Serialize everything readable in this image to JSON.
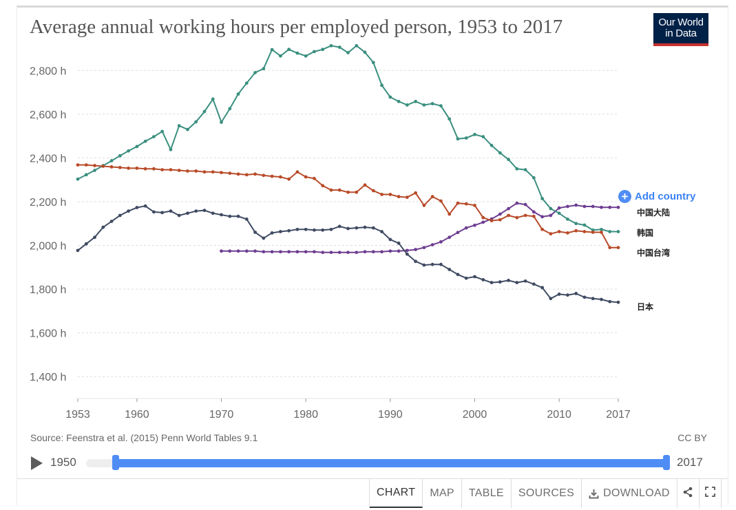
{
  "title": "Average annual working hours per employed person, 1953 to 2017",
  "logo": {
    "line1": "Our World",
    "line2": "in Data"
  },
  "add_country_label": "Add country",
  "source": "Source: Feenstra et al. (2015) Penn World Tables 9.1",
  "license": "CC BY",
  "timeline": {
    "start_label": "1950",
    "end_label": "2017"
  },
  "tabs": [
    {
      "label": "CHART",
      "active": true
    },
    {
      "label": "MAP",
      "active": false
    },
    {
      "label": "TABLE",
      "active": false
    },
    {
      "label": "SOURCES",
      "active": false
    },
    {
      "label": "DOWNLOAD",
      "active": false
    }
  ],
  "colors": {
    "accent": "#4f8df5",
    "title": "#555555",
    "logo_bg": "#002147",
    "logo_stripe": "#c5312d"
  },
  "chart_data": {
    "type": "line",
    "title": "Average annual working hours per employed person, 1953 to 2017",
    "xlabel": "",
    "ylabel": "",
    "xlim": [
      1953,
      2017
    ],
    "ylim": [
      1300,
      2930
    ],
    "x_ticks": [
      1953,
      1960,
      1970,
      1980,
      1990,
      2000,
      2010,
      2017
    ],
    "y_ticks": [
      1400,
      1600,
      1800,
      2000,
      2200,
      2400,
      2600,
      2800
    ],
    "y_tick_labels": [
      "1,400 h",
      "1,600 h",
      "1,800 h",
      "2,000 h",
      "2,200 h",
      "2,400 h",
      "2,600 h",
      "2,800 h"
    ],
    "grid": "horizontal dashed",
    "legend": "line end labels",
    "series": [
      {
        "name": "中国大陆",
        "color": "#6d3e91",
        "points": [
          [
            1970,
            1974
          ],
          [
            1971,
            1974
          ],
          [
            1972,
            1974
          ],
          [
            1973,
            1974
          ],
          [
            1974,
            1974
          ],
          [
            1975,
            1971
          ],
          [
            1976,
            1971
          ],
          [
            1977,
            1971
          ],
          [
            1978,
            1971
          ],
          [
            1979,
            1971
          ],
          [
            1980,
            1971
          ],
          [
            1981,
            1971
          ],
          [
            1982,
            1968
          ],
          [
            1983,
            1968
          ],
          [
            1984,
            1968
          ],
          [
            1985,
            1968
          ],
          [
            1986,
            1968
          ],
          [
            1987,
            1971
          ],
          [
            1988,
            1971
          ],
          [
            1989,
            1971
          ],
          [
            1990,
            1974
          ],
          [
            1991,
            1974
          ],
          [
            1992,
            1977
          ],
          [
            1993,
            1981
          ],
          [
            1994,
            1990
          ],
          [
            1995,
            2003
          ],
          [
            1996,
            2016
          ],
          [
            1997,
            2037
          ],
          [
            1998,
            2059
          ],
          [
            1999,
            2080
          ],
          [
            2000,
            2092
          ],
          [
            2001,
            2106
          ],
          [
            2002,
            2121
          ],
          [
            2003,
            2143
          ],
          [
            2004,
            2168
          ],
          [
            2005,
            2193
          ],
          [
            2006,
            2187
          ],
          [
            2007,
            2153
          ],
          [
            2008,
            2131
          ],
          [
            2009,
            2137
          ],
          [
            2010,
            2171
          ],
          [
            2011,
            2178
          ],
          [
            2012,
            2184
          ],
          [
            2013,
            2178
          ],
          [
            2014,
            2178
          ],
          [
            2015,
            2174
          ],
          [
            2016,
            2174
          ],
          [
            2017,
            2174
          ]
        ]
      },
      {
        "name": "韩国",
        "color": "#3a8f7f",
        "points": [
          [
            1953,
            2303
          ],
          [
            1954,
            2323
          ],
          [
            1955,
            2343
          ],
          [
            1956,
            2365
          ],
          [
            1957,
            2387
          ],
          [
            1958,
            2410
          ],
          [
            1959,
            2432
          ],
          [
            1960,
            2452
          ],
          [
            1961,
            2476
          ],
          [
            1962,
            2497
          ],
          [
            1963,
            2521
          ],
          [
            1964,
            2438
          ],
          [
            1965,
            2547
          ],
          [
            1966,
            2530
          ],
          [
            1967,
            2565
          ],
          [
            1968,
            2612
          ],
          [
            1969,
            2669
          ],
          [
            1970,
            2563
          ],
          [
            1971,
            2625
          ],
          [
            1972,
            2692
          ],
          [
            1973,
            2742
          ],
          [
            1974,
            2790
          ],
          [
            1975,
            2808
          ],
          [
            1976,
            2895
          ],
          [
            1977,
            2866
          ],
          [
            1978,
            2896
          ],
          [
            1979,
            2879
          ],
          [
            1980,
            2866
          ],
          [
            1981,
            2886
          ],
          [
            1982,
            2896
          ],
          [
            1983,
            2913
          ],
          [
            1984,
            2906
          ],
          [
            1985,
            2881
          ],
          [
            1986,
            2913
          ],
          [
            1987,
            2883
          ],
          [
            1988,
            2836
          ],
          [
            1989,
            2732
          ],
          [
            1990,
            2678
          ],
          [
            1991,
            2658
          ],
          [
            1992,
            2642
          ],
          [
            1993,
            2658
          ],
          [
            1994,
            2642
          ],
          [
            1995,
            2648
          ],
          [
            1996,
            2638
          ],
          [
            1997,
            2578
          ],
          [
            1998,
            2487
          ],
          [
            1999,
            2491
          ],
          [
            2000,
            2507
          ],
          [
            2001,
            2497
          ],
          [
            2002,
            2457
          ],
          [
            2003,
            2423
          ],
          [
            2004,
            2393
          ],
          [
            2005,
            2350
          ],
          [
            2006,
            2346
          ],
          [
            2007,
            2309
          ],
          [
            2008,
            2214
          ],
          [
            2009,
            2168
          ],
          [
            2010,
            2147
          ],
          [
            2011,
            2120
          ],
          [
            2012,
            2100
          ],
          [
            2013,
            2093
          ],
          [
            2014,
            2070
          ],
          [
            2015,
            2073
          ],
          [
            2016,
            2063
          ],
          [
            2017,
            2063
          ]
        ]
      },
      {
        "name": "中国台湾",
        "color": "#b84b29",
        "points": [
          [
            1953,
            2368
          ],
          [
            1954,
            2368
          ],
          [
            1955,
            2365
          ],
          [
            1956,
            2362
          ],
          [
            1957,
            2359
          ],
          [
            1958,
            2356
          ],
          [
            1959,
            2353
          ],
          [
            1960,
            2353
          ],
          [
            1961,
            2350
          ],
          [
            1962,
            2350
          ],
          [
            1963,
            2346
          ],
          [
            1964,
            2346
          ],
          [
            1965,
            2343
          ],
          [
            1966,
            2340
          ],
          [
            1967,
            2340
          ],
          [
            1968,
            2336
          ],
          [
            1969,
            2336
          ],
          [
            1970,
            2333
          ],
          [
            1971,
            2330
          ],
          [
            1972,
            2326
          ],
          [
            1973,
            2323
          ],
          [
            1974,
            2326
          ],
          [
            1975,
            2320
          ],
          [
            1976,
            2316
          ],
          [
            1977,
            2313
          ],
          [
            1978,
            2303
          ],
          [
            1979,
            2336
          ],
          [
            1980,
            2313
          ],
          [
            1981,
            2306
          ],
          [
            1982,
            2273
          ],
          [
            1983,
            2253
          ],
          [
            1984,
            2253
          ],
          [
            1985,
            2243
          ],
          [
            1986,
            2243
          ],
          [
            1987,
            2276
          ],
          [
            1988,
            2250
          ],
          [
            1989,
            2233
          ],
          [
            1990,
            2233
          ],
          [
            1991,
            2223
          ],
          [
            1992,
            2220
          ],
          [
            1993,
            2240
          ],
          [
            1994,
            2183
          ],
          [
            1995,
            2223
          ],
          [
            1996,
            2203
          ],
          [
            1997,
            2143
          ],
          [
            1998,
            2193
          ],
          [
            1999,
            2190
          ],
          [
            2000,
            2183
          ],
          [
            2001,
            2127
          ],
          [
            2002,
            2113
          ],
          [
            2003,
            2117
          ],
          [
            2004,
            2137
          ],
          [
            2005,
            2127
          ],
          [
            2006,
            2137
          ],
          [
            2007,
            2133
          ],
          [
            2008,
            2073
          ],
          [
            2009,
            2053
          ],
          [
            2010,
            2063
          ],
          [
            2011,
            2057
          ],
          [
            2012,
            2067
          ],
          [
            2013,
            2063
          ],
          [
            2014,
            2060
          ],
          [
            2015,
            2060
          ],
          [
            2016,
            1990
          ],
          [
            2017,
            1990
          ]
        ]
      },
      {
        "name": "日本",
        "color": "#3f4b62",
        "points": [
          [
            1953,
            1977
          ],
          [
            1954,
            2007
          ],
          [
            1955,
            2037
          ],
          [
            1956,
            2083
          ],
          [
            1957,
            2110
          ],
          [
            1958,
            2137
          ],
          [
            1959,
            2157
          ],
          [
            1960,
            2173
          ],
          [
            1961,
            2180
          ],
          [
            1962,
            2153
          ],
          [
            1963,
            2150
          ],
          [
            1964,
            2157
          ],
          [
            1965,
            2137
          ],
          [
            1966,
            2147
          ],
          [
            1967,
            2157
          ],
          [
            1968,
            2160
          ],
          [
            1969,
            2147
          ],
          [
            1970,
            2140
          ],
          [
            1971,
            2133
          ],
          [
            1972,
            2133
          ],
          [
            1973,
            2120
          ],
          [
            1974,
            2060
          ],
          [
            1975,
            2033
          ],
          [
            1976,
            2057
          ],
          [
            1977,
            2063
          ],
          [
            1978,
            2067
          ],
          [
            1979,
            2073
          ],
          [
            1980,
            2073
          ],
          [
            1981,
            2070
          ],
          [
            1982,
            2070
          ],
          [
            1983,
            2073
          ],
          [
            1984,
            2087
          ],
          [
            1985,
            2077
          ],
          [
            1986,
            2080
          ],
          [
            1987,
            2083
          ],
          [
            1988,
            2080
          ],
          [
            1989,
            2063
          ],
          [
            1990,
            2027
          ],
          [
            1991,
            2010
          ],
          [
            1992,
            1960
          ],
          [
            1993,
            1927
          ],
          [
            1994,
            1910
          ],
          [
            1995,
            1913
          ],
          [
            1996,
            1913
          ],
          [
            1997,
            1890
          ],
          [
            1998,
            1867
          ],
          [
            1999,
            1850
          ],
          [
            2000,
            1857
          ],
          [
            2001,
            1843
          ],
          [
            2002,
            1830
          ],
          [
            2003,
            1833
          ],
          [
            2004,
            1840
          ],
          [
            2005,
            1830
          ],
          [
            2006,
            1837
          ],
          [
            2007,
            1823
          ],
          [
            2008,
            1807
          ],
          [
            2009,
            1757
          ],
          [
            2010,
            1777
          ],
          [
            2011,
            1773
          ],
          [
            2012,
            1780
          ],
          [
            2013,
            1763
          ],
          [
            2014,
            1757
          ],
          [
            2015,
            1753
          ],
          [
            2016,
            1743
          ],
          [
            2017,
            1740
          ]
        ]
      }
    ],
    "end_labels": [
      "中国大陆",
      "韩国",
      "中国台湾",
      "日本"
    ]
  }
}
